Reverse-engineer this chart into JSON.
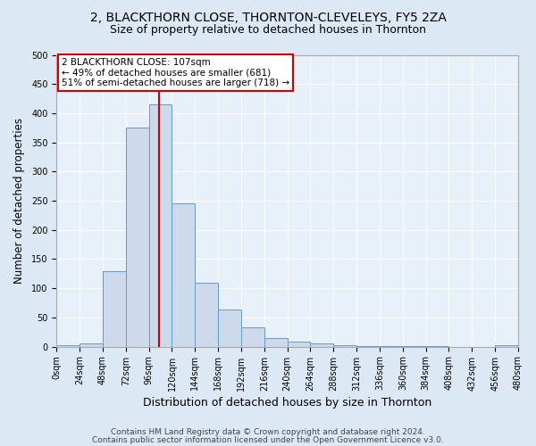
{
  "title1": "2, BLACKTHORN CLOSE, THORNTON-CLEVELEYS, FY5 2ZA",
  "title2": "Size of property relative to detached houses in Thornton",
  "xlabel": "Distribution of detached houses by size in Thornton",
  "ylabel": "Number of detached properties",
  "bar_edges": [
    0,
    24,
    48,
    72,
    96,
    120,
    144,
    168,
    192,
    216,
    240,
    264,
    288,
    312,
    336,
    360,
    384,
    408,
    432,
    456,
    480
  ],
  "bar_heights": [
    3,
    5,
    130,
    375,
    415,
    245,
    110,
    63,
    33,
    15,
    8,
    5,
    2,
    1,
    1,
    1,
    1,
    0,
    0,
    3
  ],
  "bar_color": "#cddaeb",
  "bar_edgecolor": "#6699cc",
  "property_size": 107,
  "vline_color": "#cc0000",
  "annotation_text": "2 BLACKTHORN CLOSE: 107sqm\n← 49% of detached houses are smaller (681)\n51% of semi-detached houses are larger (718) →",
  "annotation_boxcolor": "white",
  "annotation_edgecolor": "#cc0000",
  "ylim": [
    0,
    500
  ],
  "xlim": [
    0,
    480
  ],
  "footer1": "Contains HM Land Registry data © Crown copyright and database right 2024.",
  "footer2": "Contains public sector information licensed under the Open Government Licence v3.0.",
  "bg_color": "#dde8f5",
  "plot_bg_color": "#e8f0fa",
  "title1_fontsize": 10,
  "title2_fontsize": 9,
  "tick_label_fontsize": 7,
  "xlabel_fontsize": 9,
  "ylabel_fontsize": 8.5,
  "footer_fontsize": 6.5
}
